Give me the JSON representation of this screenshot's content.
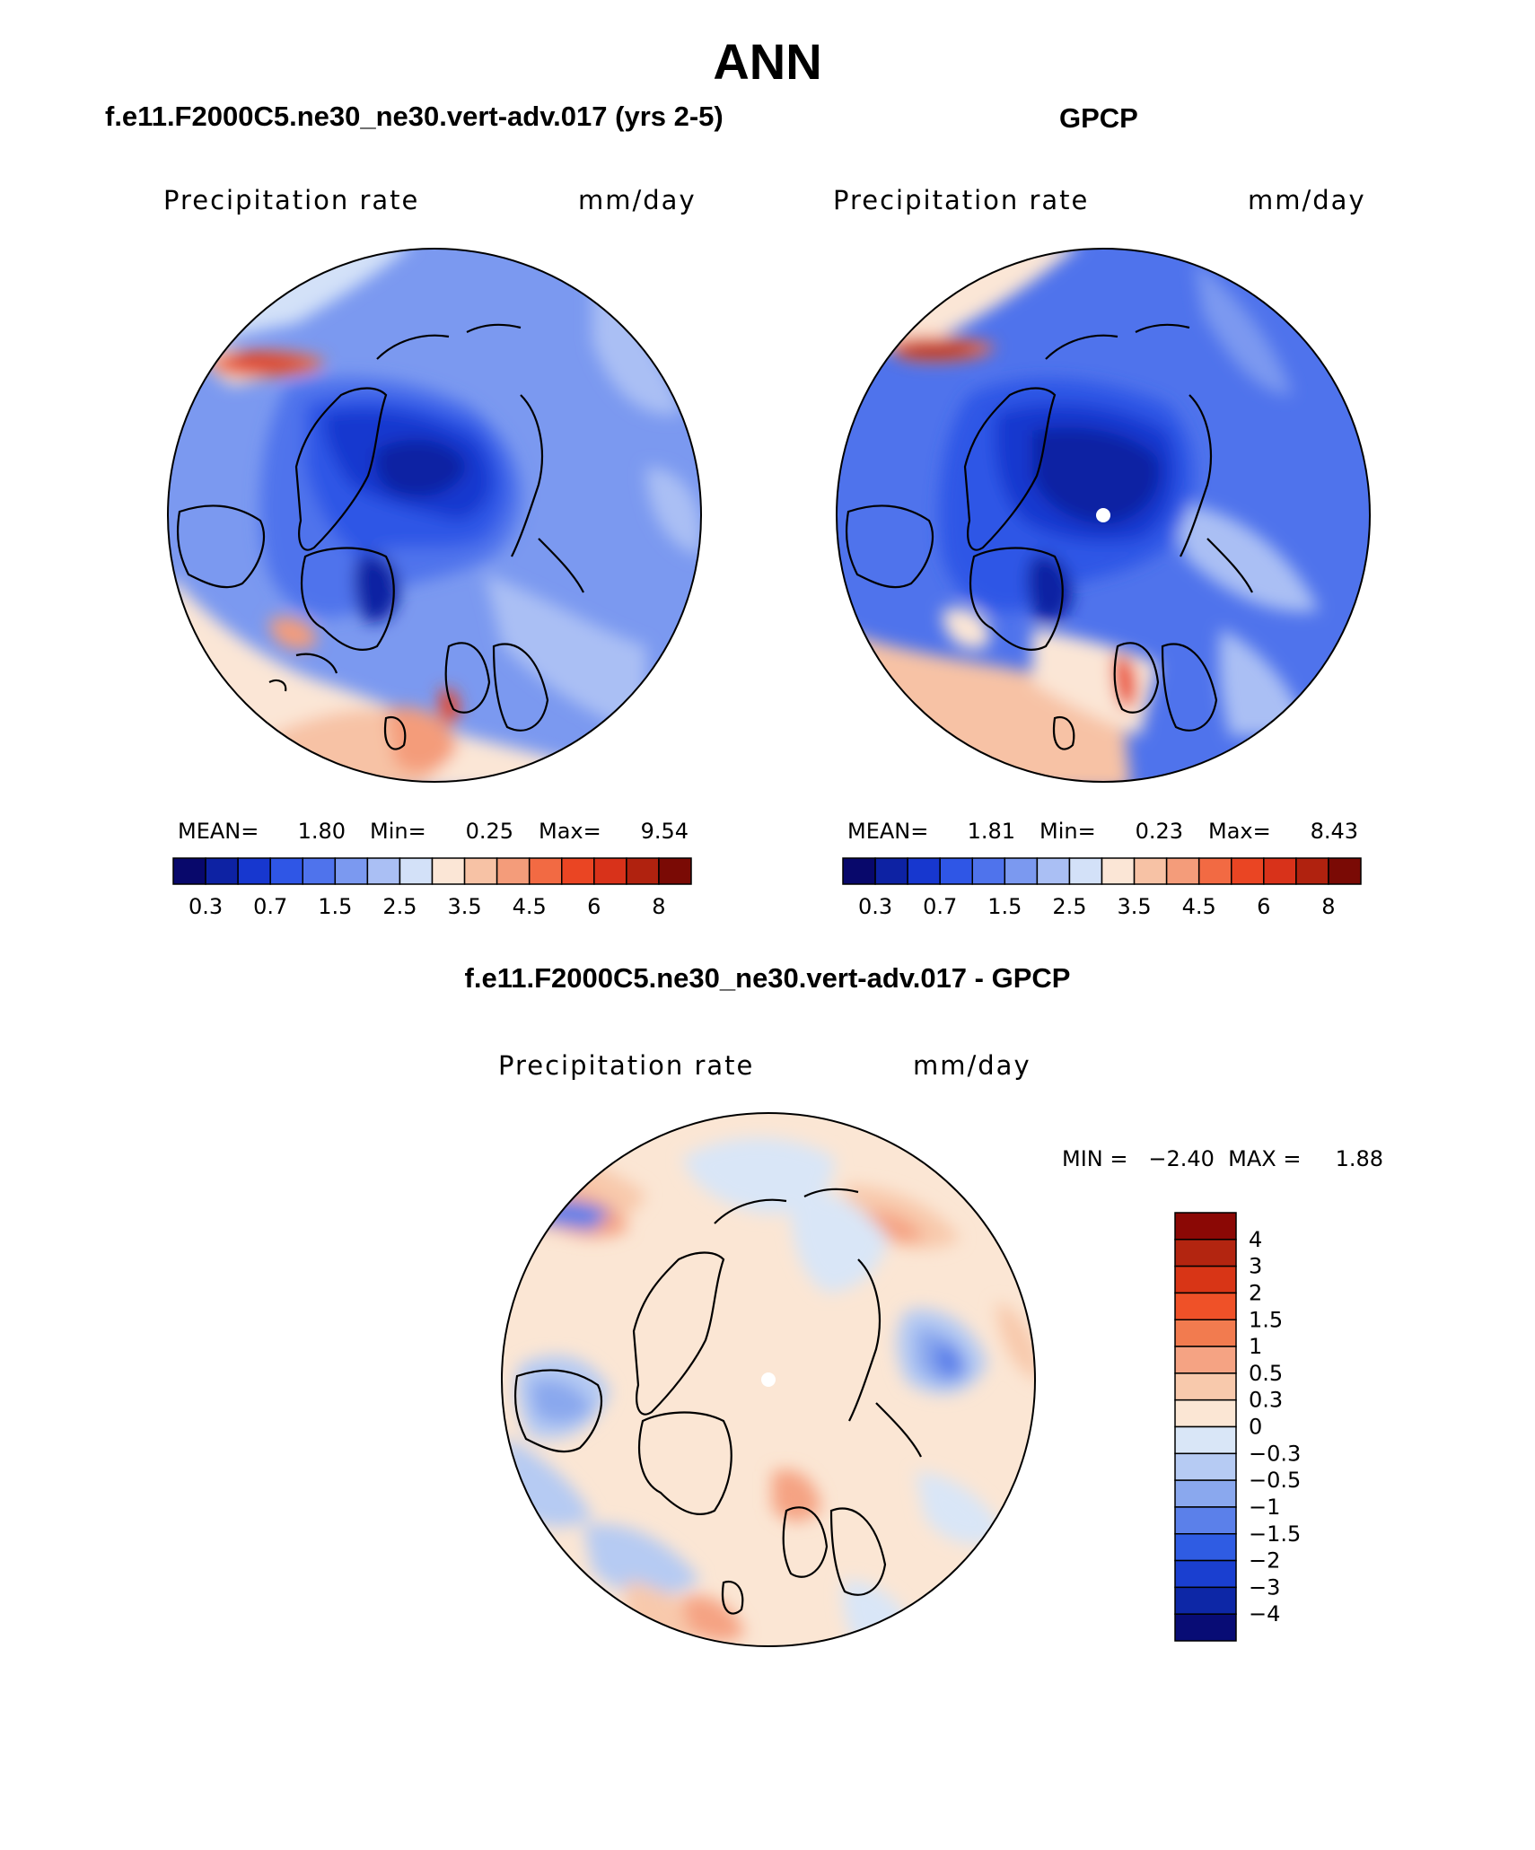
{
  "page": {
    "main_title": "ANN",
    "panel_titles": {
      "model": "f.e11.F2000C5.ne30_ne30.vert-adv.017 (yrs 2-5)",
      "obs": "GPCP",
      "diff": "f.e11.F2000C5.ne30_ne30.vert-adv.017 - GPCP"
    }
  },
  "panels": {
    "model": {
      "variable": "Precipitation rate",
      "units": "mm/day",
      "stats": {
        "mean_label": "MEAN=",
        "mean": "1.80",
        "min_label": "Min=",
        "min": "0.25",
        "max_label": "Max=",
        "max": "9.54"
      },
      "colorbar_labels": [
        "0.3",
        "0.7",
        "1.5",
        "2.5",
        "3.5",
        "4.5",
        "6",
        "8"
      ]
    },
    "obs": {
      "variable": "Precipitation rate",
      "units": "mm/day",
      "stats": {
        "mean_label": "MEAN=",
        "mean": "1.81",
        "min_label": "Min=",
        "min": "0.23",
        "max_label": "Max=",
        "max": "8.43"
      },
      "colorbar_labels": [
        "0.3",
        "0.7",
        "1.5",
        "2.5",
        "3.5",
        "4.5",
        "6",
        "8"
      ]
    },
    "diff": {
      "variable": "Precipitation rate",
      "units": "mm/day",
      "stats_line": "MIN =   −2.40  MAX =     1.88",
      "colorbar_labels": [
        "4",
        "3",
        "2",
        "1.5",
        "1",
        "0.5",
        "0.3",
        "0",
        "−0.3",
        "−0.5",
        "−1",
        "−1.5",
        "−2",
        "−3",
        "−4"
      ]
    }
  },
  "colors": {
    "abs_scale": [
      "#08086b",
      "#0d22a3",
      "#1737cf",
      "#2f56e6",
      "#4f73ec",
      "#7b99f0",
      "#aabff4",
      "#d3e1f8",
      "#fbe6d6",
      "#f7c2a5",
      "#f49c7a",
      "#f26a43",
      "#ea4523",
      "#d8321a",
      "#b0220f",
      "#7a0a05"
    ],
    "diff_scale": [
      "#8b0805",
      "#b32510",
      "#d83516",
      "#ef5128",
      "#f27b4f",
      "#f5a383",
      "#f8c9ac",
      "#fbe6d4",
      "#d9e6f7",
      "#b6cbf3",
      "#8aa8ee",
      "#5b80ea",
      "#2f5ce3",
      "#1a3fd0",
      "#0d27a6",
      "#080c75"
    ],
    "land_outline": "#000000"
  }
}
